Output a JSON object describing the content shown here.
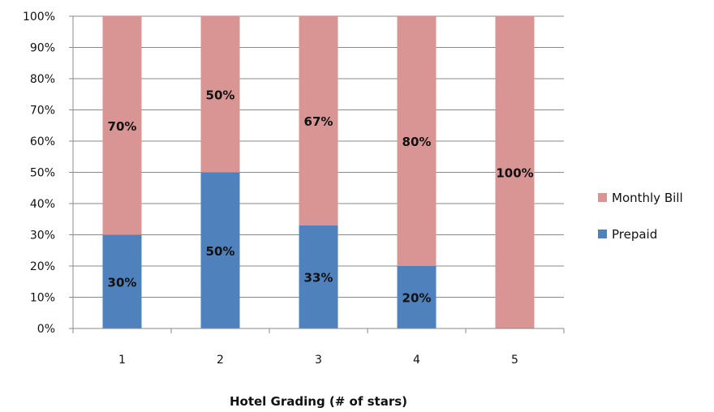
{
  "chart_data": {
    "type": "bar",
    "stacked": true,
    "percent_stacked": true,
    "categories": [
      "1",
      "2",
      "3",
      "4",
      "5"
    ],
    "series": [
      {
        "name": "Prepaid",
        "color": "#4F81BD",
        "values": [
          30,
          50,
          33,
          20,
          0
        ],
        "labels": [
          "30%",
          "50%",
          "33%",
          "20%",
          null
        ]
      },
      {
        "name": "Monthly Bill",
        "color": "#D99594",
        "values": [
          70,
          50,
          67,
          80,
          100
        ],
        "labels": [
          "70%",
          "50%",
          "67%",
          "80%",
          "100%"
        ]
      }
    ],
    "xlabel": "Hotel Grading  (# of stars)",
    "ylabel": "",
    "ylim": [
      0,
      100
    ],
    "yticks": [
      "0%",
      "10%",
      "20%",
      "30%",
      "40%",
      "50%",
      "60%",
      "70%",
      "80%",
      "90%",
      "100%"
    ],
    "grid": true,
    "legend": {
      "position": "right",
      "entries": [
        "Monthly Bill",
        "Prepaid"
      ]
    }
  }
}
